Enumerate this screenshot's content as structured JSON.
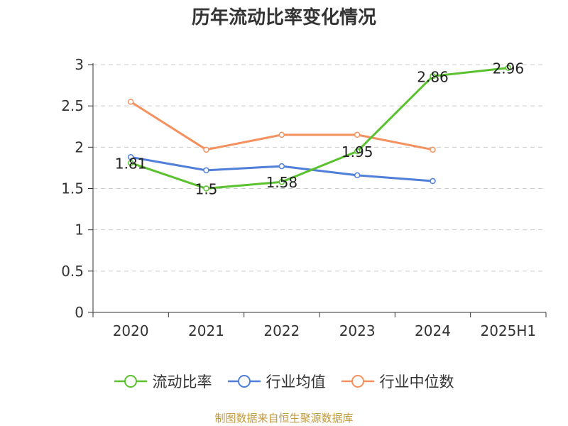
{
  "chart_data": {
    "type": "line",
    "title": "历年流动比率变化情况",
    "categories": [
      "2020",
      "2021",
      "2022",
      "2023",
      "2024",
      "2025H1"
    ],
    "ylim": [
      0,
      3
    ],
    "yticks": [
      "0",
      "0.5",
      "1",
      "1.5",
      "2",
      "2.5",
      "3"
    ],
    "grid": true,
    "legend_position": "bottom",
    "series": [
      {
        "name": "流动比率",
        "color": "#5ac12f",
        "values": [
          1.81,
          1.5,
          1.58,
          1.95,
          2.86,
          2.96
        ],
        "labels": [
          "1.81",
          "1.5",
          "1.58",
          "1.95",
          "2.86",
          "2.96"
        ]
      },
      {
        "name": "行业均值",
        "color": "#4f7fd9",
        "values": [
          1.88,
          1.72,
          1.77,
          1.66,
          1.59,
          null
        ]
      },
      {
        "name": "行业中位数",
        "color": "#f5915f",
        "values": [
          2.55,
          1.97,
          2.15,
          2.15,
          1.97,
          null
        ]
      }
    ]
  },
  "source_text": "制图数据来自恒生聚源数据库"
}
